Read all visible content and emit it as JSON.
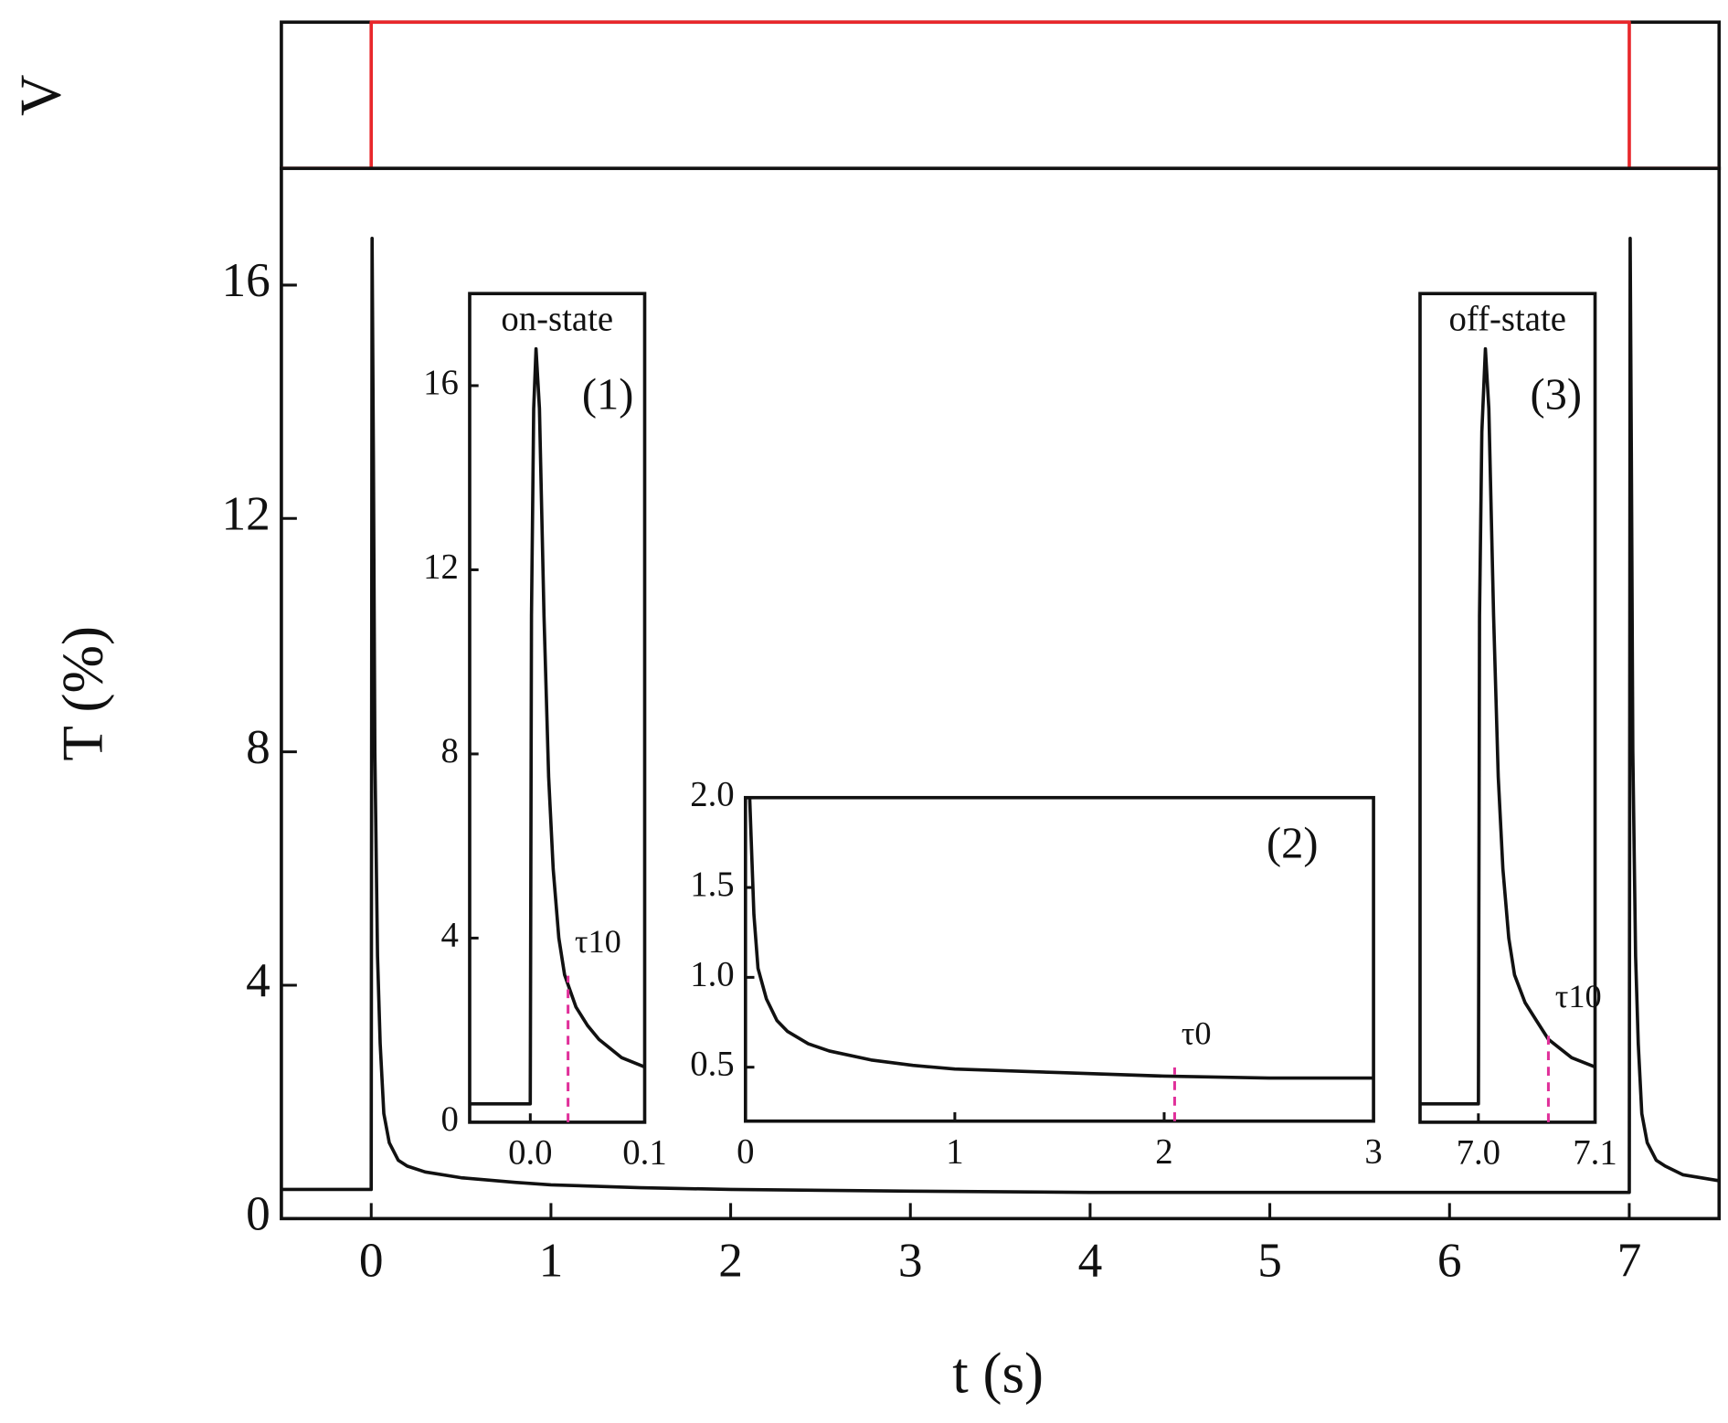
{
  "chart_data": [
    {
      "type": "line",
      "ylabel": "V",
      "xlim": [
        -0.5,
        7.5
      ],
      "ylim": [
        0,
        1
      ],
      "series": [
        {
          "color": "#e8272b",
          "x": [
            -0.5,
            0,
            0,
            7,
            7,
            7.5
          ],
          "values": [
            0,
            0,
            1,
            1,
            0,
            0
          ]
        }
      ]
    },
    {
      "type": "line",
      "xlabel": "t (s)",
      "ylabel": "T (%)",
      "xlim": [
        -0.5,
        7.5
      ],
      "ylim": [
        0,
        18
      ],
      "xticks": [
        0,
        1,
        2,
        3,
        4,
        5,
        6,
        7
      ],
      "yticks": [
        0,
        4,
        8,
        12,
        16
      ],
      "series": [
        {
          "color": "#111111",
          "x": [
            -0.5,
            0,
            0.005,
            0.012,
            0.02,
            0.035,
            0.05,
            0.07,
            0.1,
            0.15,
            0.2,
            0.3,
            0.5,
            0.8,
            1,
            1.5,
            2,
            3,
            4,
            5,
            6,
            6.99,
            7,
            7.005,
            7.012,
            7.02,
            7.035,
            7.05,
            7.07,
            7.1,
            7.15,
            7.2,
            7.3,
            7.5
          ],
          "values": [
            0.5,
            0.5,
            16.8,
            13,
            8,
            4.5,
            3,
            1.8,
            1.3,
            1.0,
            0.9,
            0.8,
            0.7,
            0.62,
            0.58,
            0.53,
            0.5,
            0.47,
            0.45,
            0.45,
            0.45,
            0.45,
            0.45,
            16.8,
            13,
            8,
            4.5,
            3,
            1.8,
            1.3,
            1.0,
            0.9,
            0.75,
            0.65
          ]
        }
      ]
    },
    {
      "type": "line",
      "title": "on-state",
      "annotation": "(1)",
      "xlim": [
        -0.053,
        0.1
      ],
      "ylim": [
        0,
        18
      ],
      "xticks": [
        {
          "value": 0,
          "label": "0.0"
        },
        0.1
      ],
      "yticks": [
        0,
        4,
        8,
        12,
        16
      ],
      "markers": [
        {
          "x": 0.033,
          "label": "τ10",
          "color": "#e0309a"
        }
      ],
      "series": [
        {
          "color": "#111111",
          "x": [
            -0.053,
            0,
            0.001,
            0.003,
            0.005,
            0.008,
            0.012,
            0.016,
            0.02,
            0.025,
            0.03,
            0.04,
            0.05,
            0.06,
            0.08,
            0.1
          ],
          "values": [
            0.4,
            0.4,
            11,
            15.5,
            16.8,
            15.5,
            11,
            7.5,
            5.5,
            4,
            3.2,
            2.5,
            2.1,
            1.8,
            1.4,
            1.2
          ]
        }
      ]
    },
    {
      "type": "line",
      "annotation": "(2)",
      "xlim": [
        0,
        3
      ],
      "ylim": [
        0.2,
        2.0
      ],
      "xticks": [
        0,
        1,
        2,
        3
      ],
      "yticks": [
        0.5,
        {
          "value": 1,
          "label": "1.0"
        },
        1.5,
        {
          "value": 2,
          "label": "2.0"
        }
      ],
      "markers": [
        {
          "x": 2.05,
          "label": "τ0",
          "color": "#e0309a"
        }
      ],
      "series": [
        {
          "color": "#111111",
          "x": [
            0.02,
            0.04,
            0.06,
            0.1,
            0.15,
            0.2,
            0.3,
            0.4,
            0.6,
            0.8,
            1,
            1.5,
            2,
            2.5,
            3
          ],
          "values": [
            2.0,
            1.35,
            1.05,
            0.88,
            0.76,
            0.7,
            0.63,
            0.59,
            0.54,
            0.51,
            0.49,
            0.47,
            0.45,
            0.44,
            0.44
          ]
        }
      ]
    },
    {
      "type": "line",
      "title": "off-state",
      "annotation": "(3)",
      "xlim": [
        6.95,
        7.1
      ],
      "ylim": [
        0,
        18
      ],
      "xticks": [
        {
          "value": 7,
          "label": "7.0"
        },
        7.1
      ],
      "markers": [
        {
          "x": 7.06,
          "label": "τ10",
          "color": "#e0309a"
        }
      ],
      "series": [
        {
          "color": "#111111",
          "x": [
            6.95,
            7.0,
            7.001,
            7.003,
            7.006,
            7.009,
            7.013,
            7.017,
            7.021,
            7.026,
            7.031,
            7.04,
            7.05,
            7.06,
            7.08,
            7.1
          ],
          "values": [
            0.4,
            0.4,
            11,
            15,
            16.8,
            15.5,
            11,
            7.5,
            5.5,
            4,
            3.2,
            2.6,
            2.2,
            1.8,
            1.4,
            1.2
          ]
        }
      ]
    }
  ]
}
